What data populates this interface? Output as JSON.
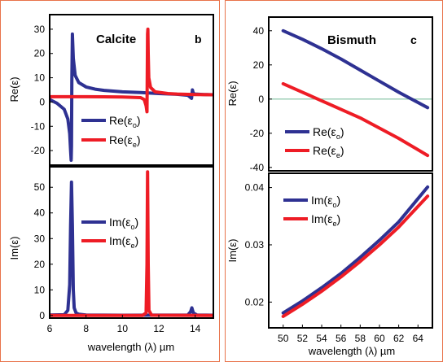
{
  "colors": {
    "blue": "#2e3192",
    "red": "#ee1c25",
    "frame": "#e8734a",
    "zero_line": "#7fbf9f"
  },
  "chart_data": [
    {
      "id": "calcite_re",
      "type": "line",
      "panel_title": "Calcite",
      "panel_letter": "b",
      "ylabel": "Re(ε)",
      "xlim": [
        6,
        15
      ],
      "ylim": [
        -26,
        36
      ],
      "yticks": [
        30,
        20,
        10,
        0,
        -10,
        -20
      ],
      "ytick_labels": [
        "30",
        "20",
        "10",
        "0",
        "-10",
        "-20"
      ],
      "legend_position": "bottom-left",
      "series": [
        {
          "name": "Re(εo)",
          "name_base": "Re(ε",
          "name_sub": "o",
          "color": "#2e3192",
          "x": [
            6,
            6.4,
            6.8,
            7.0,
            7.1,
            7.15,
            7.18,
            7.2,
            7.22,
            7.25,
            7.3,
            7.4,
            7.6,
            8,
            8.5,
            9,
            10,
            11,
            11.5,
            12,
            13,
            13.6,
            13.8,
            13.85,
            13.9,
            14,
            14.5,
            15
          ],
          "y": [
            1,
            -0.5,
            -3,
            -7,
            -13,
            -20,
            -24,
            -18,
            8,
            28,
            18,
            11,
            8,
            6.2,
            5.3,
            4.8,
            4.2,
            3.9,
            3.7,
            3.5,
            3.2,
            2.8,
            1.5,
            5,
            3.5,
            3.3,
            3.1,
            3
          ]
        },
        {
          "name": "Re(εe)",
          "name_base": "Re(ε",
          "name_sub": "e",
          "color": "#ee1c25",
          "x": [
            6,
            8,
            10,
            11,
            11.2,
            11.3,
            11.35,
            11.38,
            11.4,
            11.42,
            11.45,
            11.55,
            11.8,
            12.5,
            13,
            14,
            15
          ],
          "y": [
            2.2,
            2.2,
            2.1,
            1.8,
            1.0,
            -1.5,
            -4,
            28,
            30,
            20,
            10,
            6,
            4.2,
            3.5,
            3.3,
            3.1,
            3.0
          ]
        }
      ]
    },
    {
      "id": "calcite_im",
      "type": "line",
      "ylabel": "Im(ε)",
      "xlabel": "wavelength (λ) µm",
      "xlim": [
        6,
        15
      ],
      "ylim": [
        -1,
        58
      ],
      "xticks": [
        6,
        8,
        10,
        12,
        14
      ],
      "xtick_labels": [
        "6",
        "8",
        "10",
        "12",
        "14"
      ],
      "yticks": [
        50,
        40,
        30,
        20,
        10,
        0
      ],
      "ytick_labels": [
        "50",
        "40",
        "30",
        "20",
        "10",
        "0"
      ],
      "legend_position": "center-left",
      "series": [
        {
          "name": "Im(εo)",
          "name_base": "Im(ε",
          "name_sub": "o",
          "color": "#2e3192",
          "x": [
            6,
            6.8,
            7.0,
            7.1,
            7.15,
            7.2,
            7.25,
            7.3,
            7.35,
            7.45,
            7.6,
            8,
            10,
            13.6,
            13.75,
            13.82,
            13.9,
            14.1,
            15
          ],
          "y": [
            0.2,
            0.3,
            2,
            12,
            35,
            52,
            35,
            10,
            3,
            1,
            0.5,
            0.2,
            0.1,
            0.2,
            1.5,
            3,
            1,
            0.2,
            0.1
          ]
        },
        {
          "name": "Im(εe)",
          "name_base": "Im(ε",
          "name_sub": "e",
          "color": "#ee1c25",
          "x": [
            6,
            11.1,
            11.3,
            11.35,
            11.38,
            11.42,
            11.46,
            11.6,
            15
          ],
          "y": [
            0,
            0,
            1,
            20,
            56,
            20,
            2,
            0.1,
            0
          ]
        }
      ]
    },
    {
      "id": "bismuth_re",
      "type": "line",
      "panel_title": "Bismuth",
      "panel_letter": "c",
      "ylabel": "Re(ε)",
      "xlim": [
        48.5,
        65.5
      ],
      "ylim": [
        -42,
        48
      ],
      "yticks": [
        40,
        20,
        0,
        -20,
        -40
      ],
      "ytick_labels": [
        "40",
        "20",
        "0",
        "-20",
        "-40"
      ],
      "legend_position": "bottom-left",
      "series": [
        {
          "name": "Re(εo)",
          "name_base": "Re(ε",
          "name_sub": "o",
          "color": "#2e3192",
          "x": [
            50,
            52,
            54,
            56,
            58,
            60,
            62,
            65
          ],
          "y": [
            40,
            35,
            29.5,
            23.5,
            17,
            10.5,
            4,
            -5
          ]
        },
        {
          "name": "Re(εe)",
          "name_base": "Re(ε",
          "name_sub": "e",
          "color": "#ee1c25",
          "x": [
            50,
            52,
            54,
            56,
            58,
            60,
            62,
            65
          ],
          "y": [
            9,
            4,
            -1,
            -6,
            -11,
            -17,
            -23,
            -33
          ]
        }
      ]
    },
    {
      "id": "bismuth_im",
      "type": "line",
      "ylabel": "Im(ε)",
      "xlabel": "wavelength (λ) µm",
      "xlim": [
        48.5,
        65.5
      ],
      "ylim": [
        0.0155,
        0.0425
      ],
      "xticks": [
        50,
        52,
        54,
        56,
        58,
        60,
        62,
        64
      ],
      "xtick_labels": [
        "50",
        "52",
        "54",
        "56",
        "58",
        "60",
        "62",
        "64"
      ],
      "yticks": [
        0.04,
        0.03,
        0.02
      ],
      "ytick_labels": [
        "0.04",
        "0.03",
        "0.02"
      ],
      "legend_position": "top-left",
      "series": [
        {
          "name": "Im(εo)",
          "name_base": "Im(ε",
          "name_sub": "o",
          "color": "#2e3192",
          "x": [
            50,
            52,
            54,
            56,
            58,
            60,
            62,
            65
          ],
          "y": [
            0.0181,
            0.0202,
            0.0225,
            0.025,
            0.0278,
            0.0308,
            0.034,
            0.0401
          ]
        },
        {
          "name": "Im(εe)",
          "name_base": "Im(ε",
          "name_sub": "e",
          "color": "#ee1c25",
          "x": [
            50,
            52,
            54,
            56,
            58,
            60,
            62,
            65
          ],
          "y": [
            0.0175,
            0.0196,
            0.0219,
            0.0244,
            0.0271,
            0.03,
            0.0331,
            0.0385
          ]
        }
      ]
    }
  ]
}
